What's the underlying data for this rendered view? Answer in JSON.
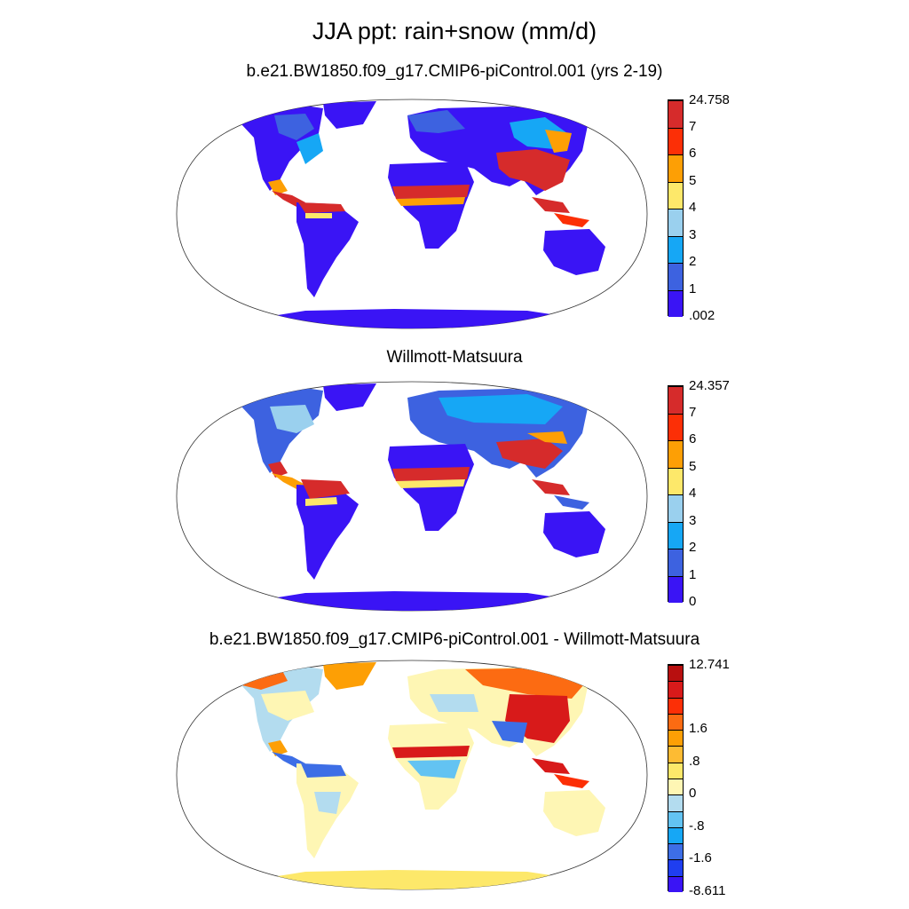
{
  "title": "JJA ppt: rain+snow (mm/d)",
  "panels": [
    {
      "subtitle": "b.e21.BW1850.f09_g17.CMIP6-piControl.001 (yrs 2-19)",
      "colorbar": {
        "colors": [
          "#3a14f5",
          "#3d62e0",
          "#16a7f5",
          "#9ad0ee",
          "#fde86a",
          "#fd9f05",
          "#fc2f06",
          "#d62b2b"
        ],
        "labels": [
          ".002",
          "1",
          "2",
          "3",
          "4",
          "5",
          "6",
          "7",
          "24.758"
        ]
      }
    },
    {
      "subtitle": "Willmott-Matsuura",
      "colorbar": {
        "colors": [
          "#3a14f5",
          "#3d62e0",
          "#16a7f5",
          "#9ad0ee",
          "#fde86a",
          "#fd9f05",
          "#fc2f06",
          "#d62b2b"
        ],
        "labels": [
          "0",
          "1",
          "2",
          "3",
          "4",
          "5",
          "6",
          "7",
          "24.357"
        ]
      }
    },
    {
      "subtitle": "b.e21.BW1850.f09_g17.CMIP6-piControl.001 - Willmott-Matsuura",
      "colorbar": {
        "colors": [
          "#3a14f5",
          "#1f3ef0",
          "#3d6ee6",
          "#16a7f5",
          "#63c3f2",
          "#b3dcef",
          "#fef6b4",
          "#fde86a",
          "#fdbb33",
          "#fd9f05",
          "#fc6b12",
          "#fc2f06",
          "#d81a1a",
          "#b80f0f"
        ],
        "labels": [
          "-8.611",
          "",
          "-1.6",
          "",
          "-.8",
          "",
          "0",
          "",
          ".8",
          "",
          "1.6",
          "",
          "",
          "12.741"
        ],
        "shown_labels": [
          "-8.611",
          "-1.6",
          "-.8",
          "0",
          ".8",
          "1.6",
          "12.741"
        ]
      }
    }
  ]
}
